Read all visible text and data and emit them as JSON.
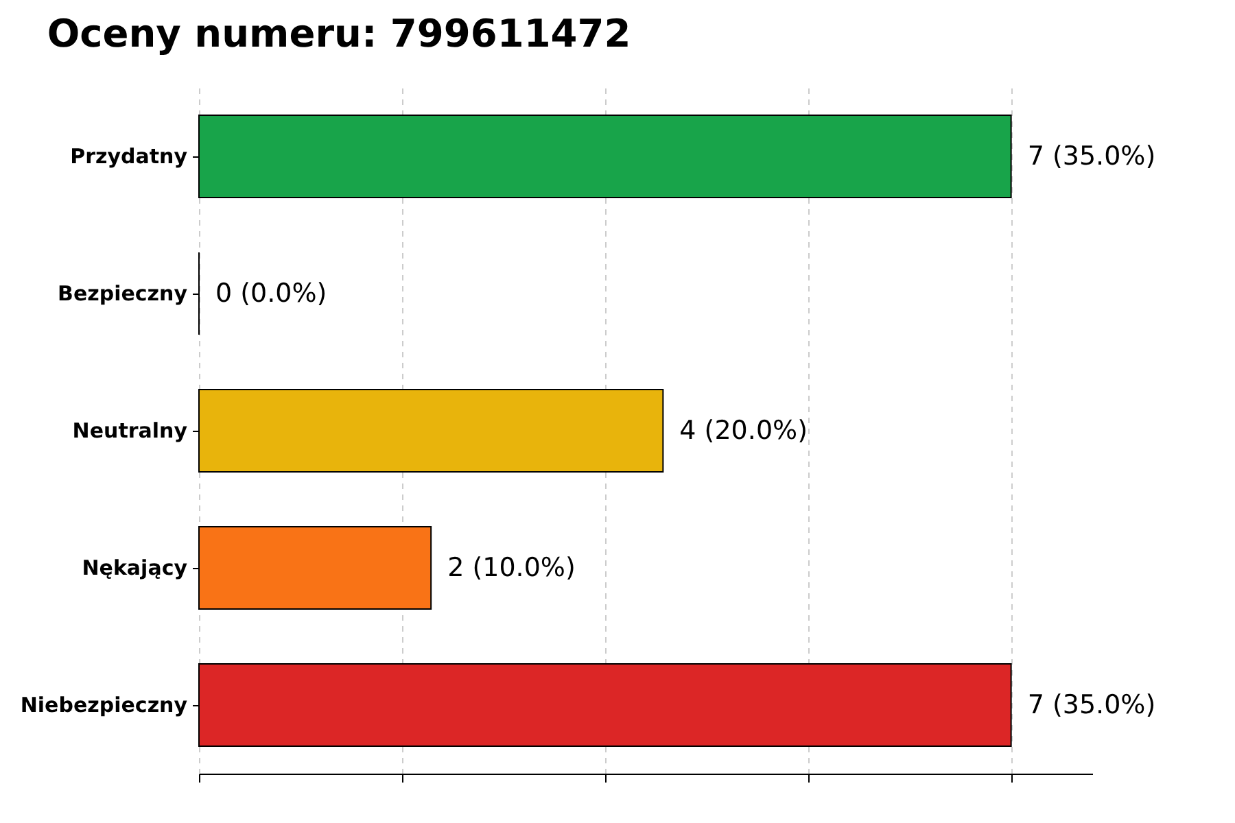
{
  "chart_data": {
    "type": "bar",
    "title": "Oceny numeru: 799611472",
    "orientation": "horizontal",
    "categories": [
      "Przydatny",
      "Bezpieczny",
      "Neutralny",
      "Nękający",
      "Niebezpieczny"
    ],
    "values": [
      7,
      0,
      4,
      2,
      7
    ],
    "colors": [
      "#18a44a",
      "#000000",
      "#e8b40c",
      "#f97316",
      "#dc2626"
    ],
    "value_labels": [
      "7 (35.0%)",
      "0 (0.0%)",
      "4 (20.0%)",
      "2 (10.0%)",
      "7 (35.0%)"
    ],
    "xlim": [
      0,
      7.7
    ],
    "xticks": [
      {
        "value": 0,
        "label": null
      },
      {
        "value": 1.75,
        "label": null
      },
      {
        "value": 3.5,
        "label": null
      },
      {
        "value": 5.25,
        "label": null
      },
      {
        "value": 7,
        "label": null
      }
    ],
    "grid": "x",
    "tick_labels": "y"
  }
}
